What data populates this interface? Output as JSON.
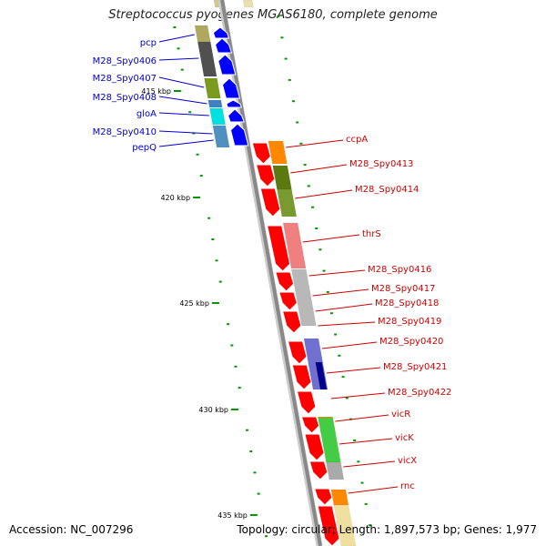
{
  "header": {
    "title": "Streptococcus pyogenes MGAS6180, complete genome"
  },
  "footer": {
    "accession": "Accession: NC_007296",
    "topology": "Topology: circular; Length: 1,897,573 bp; Genes: 1,977"
  },
  "scale": {
    "labels": [
      "415 kbp",
      "420 kbp",
      "425 kbp",
      "430 kbp",
      "435 kbp"
    ]
  },
  "genes_reverse": [
    {
      "name": "pcp",
      "color": "#0000ff"
    },
    {
      "name": "M28_Spy0406",
      "color": "#0000ff"
    },
    {
      "name": "M28_Spy0407",
      "color": "#0000ff"
    },
    {
      "name": "M28_Spy0408",
      "color": "#0000ff"
    },
    {
      "name": "gloA",
      "color": "#0000ff"
    },
    {
      "name": "M28_Spy0410",
      "color": "#0000ff"
    },
    {
      "name": "pepQ",
      "color": "#0000ff"
    }
  ],
  "genes_forward": [
    {
      "name": "ccpA",
      "color": "#ff0000"
    },
    {
      "name": "M28_Spy0413",
      "color": "#ff0000"
    },
    {
      "name": "M28_Spy0414",
      "color": "#ff0000"
    },
    {
      "name": "thrS",
      "color": "#ff0000"
    },
    {
      "name": "M28_Spy0416",
      "color": "#ff0000"
    },
    {
      "name": "M28_Spy0417",
      "color": "#ff0000"
    },
    {
      "name": "M28_Spy0418",
      "color": "#ff0000"
    },
    {
      "name": "M28_Spy0419",
      "color": "#ff0000"
    },
    {
      "name": "M28_Spy0420",
      "color": "#ff0000"
    },
    {
      "name": "M28_Spy0421",
      "color": "#ff0000"
    },
    {
      "name": "M28_Spy0422",
      "color": "#ff0000"
    },
    {
      "name": "vicR",
      "color": "#ff0000"
    },
    {
      "name": "vicK",
      "color": "#ff0000"
    },
    {
      "name": "vicX",
      "color": "#ff0000"
    },
    {
      "name": "rnc",
      "color": "#ff0000"
    }
  ],
  "colors": {
    "backbone": "#888888",
    "reverse_gene": "#0000ff",
    "forward_gene": "#ff0000",
    "tick": "#009900",
    "forward_label": "#cc0000",
    "reverse_label": "#0000cc"
  }
}
